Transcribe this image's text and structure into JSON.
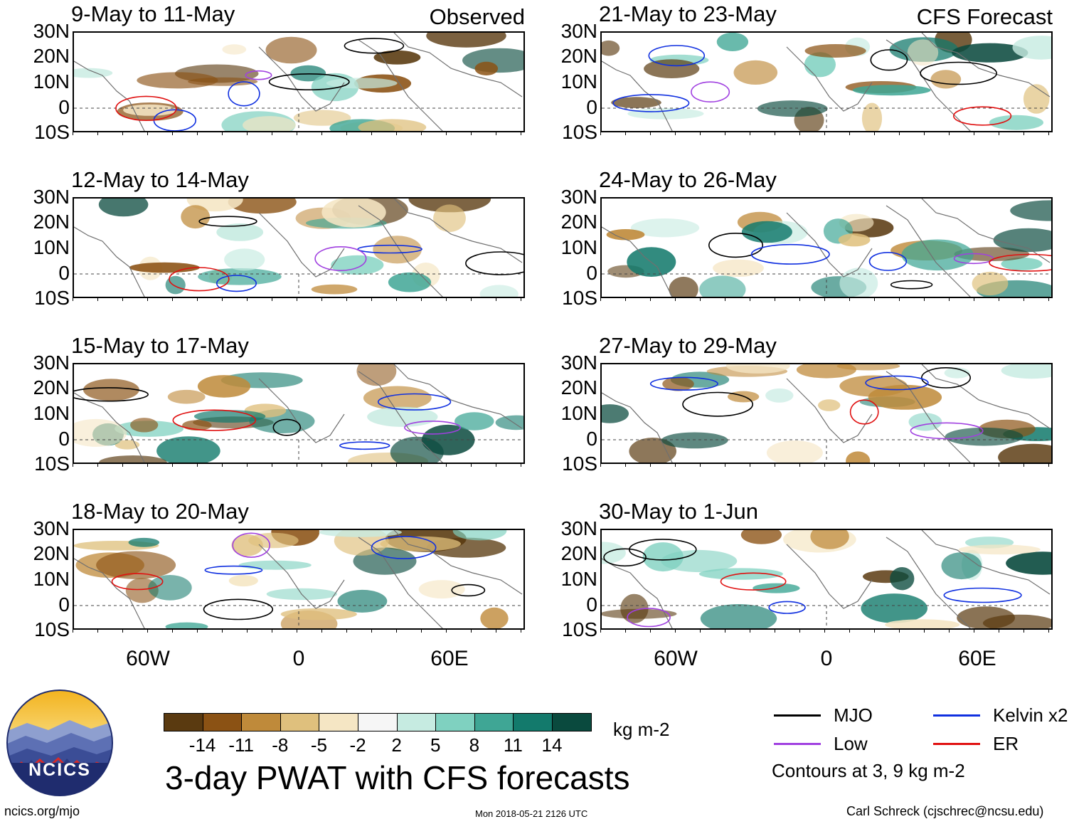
{
  "panels": [
    {
      "title": "9-May to 11-May",
      "corner": "Observed"
    },
    {
      "title": "21-May to 23-May",
      "corner": "CFS Forecast"
    },
    {
      "title": "12-May to 14-May",
      "corner": ""
    },
    {
      "title": "24-May to 26-May",
      "corner": ""
    },
    {
      "title": "15-May to 17-May",
      "corner": ""
    },
    {
      "title": "27-May to 29-May",
      "corner": ""
    },
    {
      "title": "18-May to 20-May",
      "corner": ""
    },
    {
      "title": "30-May to 1-Jun",
      "corner": ""
    }
  ],
  "lat_labels": [
    "30N",
    "20N",
    "10N",
    "0",
    "10S"
  ],
  "lon_labels": [
    "60W",
    "0",
    "60E"
  ],
  "colorbar": {
    "colors": [
      "#5a3a10",
      "#8b5214",
      "#bf8a3a",
      "#dfc07d",
      "#f5e6c4",
      "#f6f6f6",
      "#c6ebe1",
      "#7fd1c0",
      "#3fa695",
      "#137a6c",
      "#0a4a3e"
    ],
    "ticks": [
      "-14",
      "-11",
      "-8",
      "-5",
      "-2",
      "2",
      "5",
      "8",
      "11",
      "14"
    ],
    "unit": "kg m-2"
  },
  "main_title": "3-day PWAT with CFS forecasts",
  "legend": {
    "items": [
      {
        "label": "MJO",
        "color": "#000000"
      },
      {
        "label": "Kelvin x2",
        "color": "#1030e0"
      },
      {
        "label": "Low",
        "color": "#a040e0"
      },
      {
        "label": "ER",
        "color": "#e01010"
      }
    ],
    "note": "Contours at 3, 9 kg m-2"
  },
  "logo": {
    "text": "NCICS"
  },
  "footer": {
    "left": "ncics.org/mjo",
    "center": "Mon 2018-05-21 2126 UTC",
    "right": "Carl Schreck (cjschrec@ncsu.edu)"
  }
}
